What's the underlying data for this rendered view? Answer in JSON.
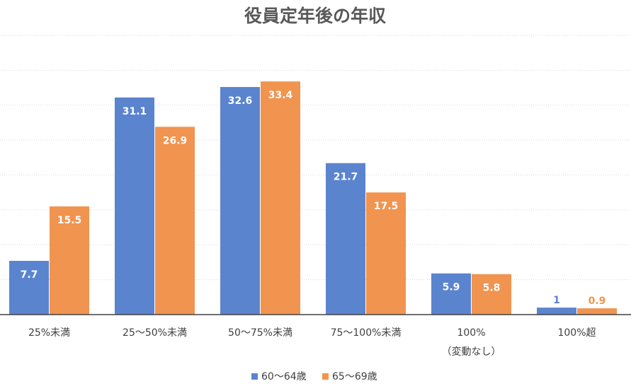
{
  "chart_data": {
    "type": "bar",
    "title": "役員定年後の年収",
    "categories": [
      [
        "25%未満"
      ],
      [
        "25〜50%未満"
      ],
      [
        "50〜75%未満"
      ],
      [
        "75〜100%未満"
      ],
      [
        "100%",
        "（変動なし）"
      ],
      [
        "100%超"
      ]
    ],
    "series": [
      {
        "name": "60〜64歳",
        "color": "#5b84cf",
        "values": [
          7.7,
          31.1,
          32.6,
          21.7,
          5.9,
          1
        ]
      },
      {
        "name": "65〜69歳",
        "color": "#f09450",
        "values": [
          15.5,
          26.9,
          33.4,
          17.5,
          5.8,
          0.9
        ]
      }
    ],
    "ylim": [
      0,
      40
    ],
    "grid": true,
    "gridline_step": 5,
    "legend": "bottom"
  }
}
